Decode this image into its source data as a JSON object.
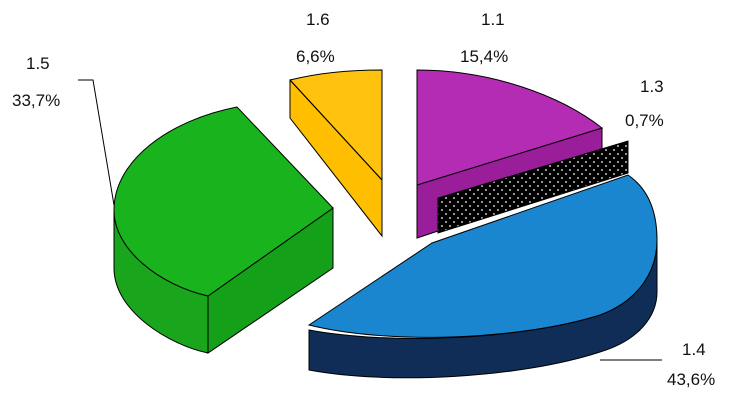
{
  "chart_data": {
    "type": "pie",
    "title": "",
    "style": "3d-exploded",
    "slices": [
      {
        "name": "1.1",
        "label": "15,4%",
        "value": 15.4,
        "color": "#b42bb4"
      },
      {
        "name": "1.3",
        "label": "0,7%",
        "value": 0.7,
        "color": "#000000",
        "pattern": "dotted"
      },
      {
        "name": "1.4",
        "label": "43,6%",
        "value": 43.6,
        "color": "#1a86cf"
      },
      {
        "name": "1.5",
        "label": "33,7%",
        "value": 33.7,
        "color": "#19b31d"
      },
      {
        "name": "1.6",
        "label": "6,6%",
        "value": 6.6,
        "color": "#ffc20e"
      }
    ]
  }
}
